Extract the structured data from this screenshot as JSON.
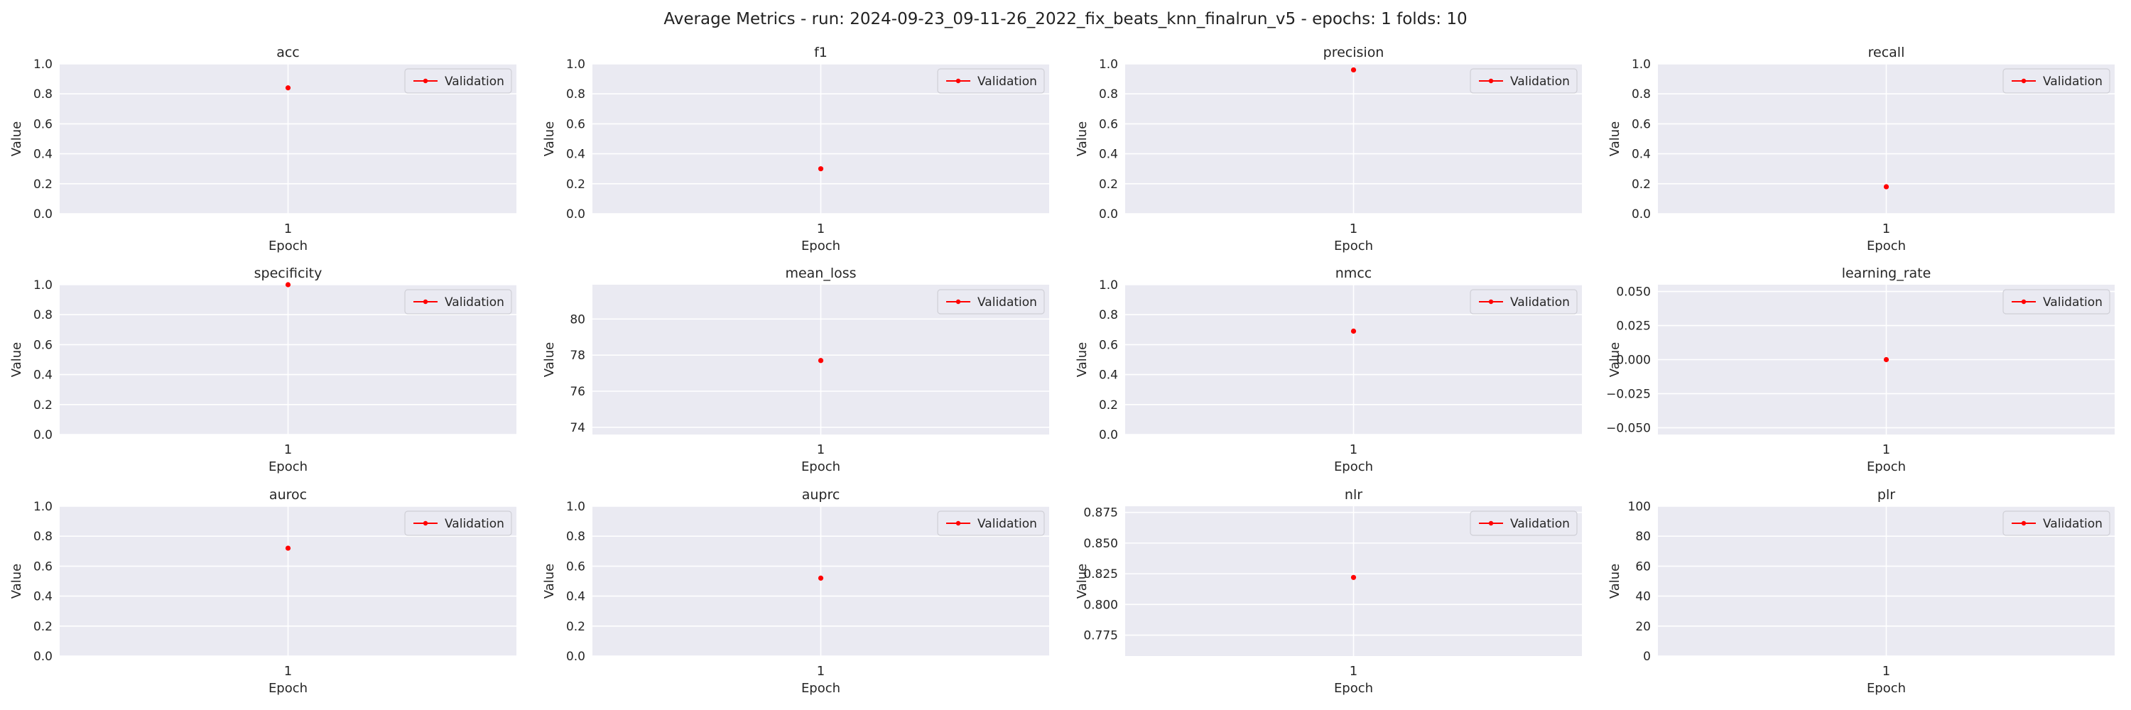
{
  "figure_title": "Average Metrics - run: 2024-09-23_09-11-26_2022_fix_beats_knn_finalrun_v5 - epochs: 1 folds: 10",
  "colors": {
    "series": "#ff0000",
    "plot_bg": "#eaeaf2",
    "grid": "#ffffff"
  },
  "chart_data": [
    {
      "type": "line",
      "title": "acc",
      "xlabel": "Epoch",
      "ylabel": "Value",
      "x": [
        1
      ],
      "series": [
        {
          "name": "Validation",
          "values": [
            0.84
          ]
        }
      ],
      "ylim": [
        0,
        1
      ],
      "yticks": [
        0,
        0.2,
        0.4,
        0.6,
        0.8,
        1.0
      ],
      "ytick_labels": [
        "0.0",
        "0.2",
        "0.4",
        "0.6",
        "0.8",
        "1.0"
      ],
      "grid": true,
      "legend": "upper-right"
    },
    {
      "type": "line",
      "title": "f1",
      "xlabel": "Epoch",
      "ylabel": "Value",
      "x": [
        1
      ],
      "series": [
        {
          "name": "Validation",
          "values": [
            0.3
          ]
        }
      ],
      "ylim": [
        0,
        1
      ],
      "yticks": [
        0,
        0.2,
        0.4,
        0.6,
        0.8,
        1.0
      ],
      "ytick_labels": [
        "0.0",
        "0.2",
        "0.4",
        "0.6",
        "0.8",
        "1.0"
      ],
      "grid": true,
      "legend": "upper-right"
    },
    {
      "type": "line",
      "title": "precision",
      "xlabel": "Epoch",
      "ylabel": "Value",
      "x": [
        1
      ],
      "series": [
        {
          "name": "Validation",
          "values": [
            0.96
          ]
        }
      ],
      "ylim": [
        0,
        1
      ],
      "yticks": [
        0,
        0.2,
        0.4,
        0.6,
        0.8,
        1.0
      ],
      "ytick_labels": [
        "0.0",
        "0.2",
        "0.4",
        "0.6",
        "0.8",
        "1.0"
      ],
      "grid": true,
      "legend": "upper-right"
    },
    {
      "type": "line",
      "title": "recall",
      "xlabel": "Epoch",
      "ylabel": "Value",
      "x": [
        1
      ],
      "series": [
        {
          "name": "Validation",
          "values": [
            0.18
          ]
        }
      ],
      "ylim": [
        0,
        1
      ],
      "yticks": [
        0,
        0.2,
        0.4,
        0.6,
        0.8,
        1.0
      ],
      "ytick_labels": [
        "0.0",
        "0.2",
        "0.4",
        "0.6",
        "0.8",
        "1.0"
      ],
      "grid": true,
      "legend": "upper-right"
    },
    {
      "type": "line",
      "title": "specificity",
      "xlabel": "Epoch",
      "ylabel": "Value",
      "x": [
        1
      ],
      "series": [
        {
          "name": "Validation",
          "values": [
            1.0
          ]
        }
      ],
      "ylim": [
        0,
        1
      ],
      "yticks": [
        0,
        0.2,
        0.4,
        0.6,
        0.8,
        1.0
      ],
      "ytick_labels": [
        "0.0",
        "0.2",
        "0.4",
        "0.6",
        "0.8",
        "1.0"
      ],
      "grid": true,
      "legend": "upper-right"
    },
    {
      "type": "line",
      "title": "mean_loss",
      "xlabel": "Epoch",
      "ylabel": "Value",
      "x": [
        1
      ],
      "series": [
        {
          "name": "Validation",
          "values": [
            77.7
          ]
        }
      ],
      "ylim": [
        73.6,
        81.9
      ],
      "yticks": [
        74,
        76,
        78,
        80
      ],
      "ytick_labels": [
        "74",
        "76",
        "78",
        "80"
      ],
      "grid": true,
      "legend": "upper-right"
    },
    {
      "type": "line",
      "title": "nmcc",
      "xlabel": "Epoch",
      "ylabel": "Value",
      "x": [
        1
      ],
      "series": [
        {
          "name": "Validation",
          "values": [
            0.69
          ]
        }
      ],
      "ylim": [
        0,
        1
      ],
      "yticks": [
        0,
        0.2,
        0.4,
        0.6,
        0.8,
        1.0
      ],
      "ytick_labels": [
        "0.0",
        "0.2",
        "0.4",
        "0.6",
        "0.8",
        "1.0"
      ],
      "grid": true,
      "legend": "upper-right"
    },
    {
      "type": "line",
      "title": "learning_rate",
      "xlabel": "Epoch",
      "ylabel": "Value",
      "x": [
        1
      ],
      "series": [
        {
          "name": "Validation",
          "values": [
            0
          ]
        }
      ],
      "ylim": [
        -0.055,
        0.055
      ],
      "yticks": [
        -0.05,
        -0.025,
        0,
        0.025,
        0.05
      ],
      "ytick_labels": [
        "−0.050",
        "−0.025",
        "0.000",
        "0.025",
        "0.050"
      ],
      "grid": true,
      "legend": "upper-right"
    },
    {
      "type": "line",
      "title": "auroc",
      "xlabel": "Epoch",
      "ylabel": "Value",
      "x": [
        1
      ],
      "series": [
        {
          "name": "Validation",
          "values": [
            0.72
          ]
        }
      ],
      "ylim": [
        0,
        1
      ],
      "yticks": [
        0,
        0.2,
        0.4,
        0.6,
        0.8,
        1.0
      ],
      "ytick_labels": [
        "0.0",
        "0.2",
        "0.4",
        "0.6",
        "0.8",
        "1.0"
      ],
      "grid": true,
      "legend": "upper-right"
    },
    {
      "type": "line",
      "title": "auprc",
      "xlabel": "Epoch",
      "ylabel": "Value",
      "x": [
        1
      ],
      "series": [
        {
          "name": "Validation",
          "values": [
            0.52
          ]
        }
      ],
      "ylim": [
        0,
        1
      ],
      "yticks": [
        0,
        0.2,
        0.4,
        0.6,
        0.8,
        1.0
      ],
      "ytick_labels": [
        "0.0",
        "0.2",
        "0.4",
        "0.6",
        "0.8",
        "1.0"
      ],
      "grid": true,
      "legend": "upper-right"
    },
    {
      "type": "line",
      "title": "nlr",
      "xlabel": "Epoch",
      "ylabel": "Value",
      "x": [
        1
      ],
      "series": [
        {
          "name": "Validation",
          "values": [
            0.822
          ]
        }
      ],
      "ylim": [
        0.758,
        0.88
      ],
      "yticks": [
        0.775,
        0.8,
        0.825,
        0.85,
        0.875
      ],
      "ytick_labels": [
        "0.775",
        "0.800",
        "0.825",
        "0.850",
        "0.875"
      ],
      "grid": true,
      "legend": "upper-right"
    },
    {
      "type": "line",
      "title": "plr",
      "xlabel": "Epoch",
      "ylabel": "Value",
      "x": [
        1
      ],
      "series": [
        {
          "name": "Validation",
          "values": [
            null
          ]
        }
      ],
      "ylim": [
        0,
        100
      ],
      "yticks": [
        0,
        20,
        40,
        60,
        80,
        100
      ],
      "ytick_labels": [
        "0",
        "20",
        "40",
        "60",
        "80",
        "100"
      ],
      "grid": true,
      "legend": "upper-right"
    }
  ]
}
